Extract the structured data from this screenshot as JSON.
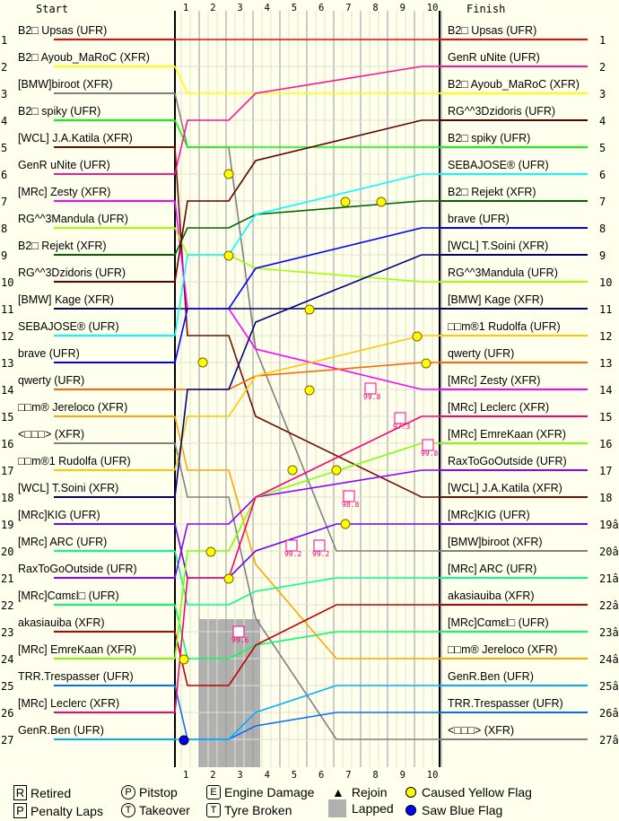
{
  "chart_data": {
    "type": "line",
    "left_header": "Start",
    "right_header": "Finish",
    "laps": [
      "1",
      "2",
      "3",
      "4",
      "5",
      "6",
      "7",
      "8",
      "9",
      "10"
    ],
    "start_positions": [
      "1",
      "2",
      "3",
      "4",
      "5",
      "6",
      "7",
      "8",
      "9",
      "10",
      "11",
      "12",
      "13",
      "14",
      "15",
      "16",
      "17",
      "18",
      "19",
      "20",
      "21",
      "22",
      "23",
      "24",
      "25",
      "26",
      "27"
    ],
    "finish_positions": [
      "1",
      "2",
      "3",
      "4",
      "5",
      "6",
      "7",
      "8",
      "9",
      "10",
      "11",
      "12",
      "13",
      "14",
      "15",
      "16",
      "17",
      "18",
      "19â",
      "20â",
      "21â",
      "22â",
      "23â",
      "24â",
      "25â",
      "26â",
      "27â"
    ],
    "drivers": [
      {
        "name": "B2□ Upsas (UFR)",
        "color": "#ff0000",
        "start": 1,
        "finish": 1,
        "finished": true
      },
      {
        "name": "B2□ Ayoub_MaRoC (XFR)",
        "color": "#ffff00",
        "start": 2,
        "finish": 3,
        "finished": true
      },
      {
        "name": "[BMW]biroot (XFR)",
        "color": "#808080",
        "start": 3,
        "finish": 20,
        "finished": false
      },
      {
        "name": "B2□ spiky (UFR)",
        "color": "#00ff00",
        "start": 4,
        "finish": 5,
        "finished": true
      },
      {
        "name": "[WCL] J.A.Katila (XFR)",
        "color": "#701000",
        "start": 5,
        "finish": 18,
        "finished": true
      },
      {
        "name": "GenR uNite (UFR)",
        "color": "#ff1493",
        "start": 6,
        "finish": 2,
        "finished": true
      },
      {
        "name": "[MRc] Zesty (XFR)",
        "color": "#ff00ff",
        "start": 7,
        "finish": 14,
        "finished": true
      },
      {
        "name": "RG^^3Mandula (UFR)",
        "color": "#a0ff00",
        "start": 8,
        "finish": 10,
        "finished": true
      },
      {
        "name": "B2□ Rejekt (XFR)",
        "color": "#006400",
        "start": 9,
        "finish": 7,
        "finished": true
      },
      {
        "name": "RG^^3Dzidoris (UFR)",
        "color": "#600000",
        "start": 10,
        "finish": 4,
        "finished": true
      },
      {
        "name": "[BMW] Kage (XFR)",
        "color": "#000060",
        "start": 11,
        "finish": 11,
        "finished": true
      },
      {
        "name": "SEBAJOSE® (UFR)",
        "color": "#00ffff",
        "start": 12,
        "finish": 6,
        "finished": true
      },
      {
        "name": "brave (UFR)",
        "color": "#0000ff",
        "start": 13,
        "finish": 8,
        "finished": true
      },
      {
        "name": "qwerty (UFR)",
        "color": "#ff6600",
        "start": 14,
        "finish": 13,
        "finished": true
      },
      {
        "name": "□□m® Jereloco (XFR)",
        "color": "#ffa500",
        "start": 15,
        "finish": 24,
        "finished": false
      },
      {
        "name": "<□□□> (XFR)",
        "color": "#808080",
        "start": 16,
        "finish": 27,
        "finished": false
      },
      {
        "name": "□□m®1 Rudolfa (UFR)",
        "color": "#ffc800",
        "start": 17,
        "finish": 12,
        "finished": true
      },
      {
        "name": "[WCL] T.Soini (XFR)",
        "color": "#000080",
        "start": 18,
        "finish": 9,
        "finished": true
      },
      {
        "name": "[MRc]KIG (UFR)",
        "color": "#7000ff",
        "start": 19,
        "finish": 19,
        "finished": false
      },
      {
        "name": "[MRc] ARC (UFR)",
        "color": "#00ff90",
        "start": 20,
        "finish": 21,
        "finished": false
      },
      {
        "name": "RaxToGoOutside (UFR)",
        "color": "#9000ff",
        "start": 21,
        "finish": 17,
        "finished": true
      },
      {
        "name": "[MRc]Cαmεl□ (UFR)",
        "color": "#00ff60",
        "start": 22,
        "finish": 23,
        "finished": false
      },
      {
        "name": "akasiauiba (XFR)",
        "color": "#c00000",
        "start": 23,
        "finish": 22,
        "finished": false
      },
      {
        "name": "[MRc] EmreKaan (XFR)",
        "color": "#80ff00",
        "start": 24,
        "finish": 16,
        "finished": true
      },
      {
        "name": "TRR.Trespasser (UFR)",
        "color": "#0070ff",
        "start": 25,
        "finish": 26,
        "finished": false
      },
      {
        "name": "[MRc] Leclerc (XFR)",
        "color": "#ff0070",
        "start": 26,
        "finish": 15,
        "finished": true
      },
      {
        "name": "GenR.Ben (UFR)",
        "color": "#00b0ff",
        "start": 27,
        "finish": 25,
        "finished": false
      }
    ],
    "markers": [
      "99.8",
      "97.3",
      "99.8",
      "99.6",
      "99.2",
      "99.2",
      "98.8"
    ]
  },
  "legend": {
    "retired": {
      "glyph": "R",
      "label": "Retired"
    },
    "penalty": {
      "glyph": "P",
      "label": "Penalty Laps"
    },
    "pitstop": {
      "glyph": "P",
      "label": "Pitstop"
    },
    "takeover": {
      "glyph": "T",
      "label": "Takeover"
    },
    "engine": {
      "glyph": "E",
      "label": "Engine Damage"
    },
    "tyre": {
      "glyph": "T",
      "label": "Tyre Broken"
    },
    "rejoin": {
      "glyph": "▲",
      "label": "Rejoin"
    },
    "lapped": {
      "label": "Lapped"
    },
    "yellow": {
      "label": "Caused Yellow Flag",
      "color": "#ffff00"
    },
    "blue": {
      "label": "Saw Blue Flag",
      "color": "#0000ff"
    }
  }
}
